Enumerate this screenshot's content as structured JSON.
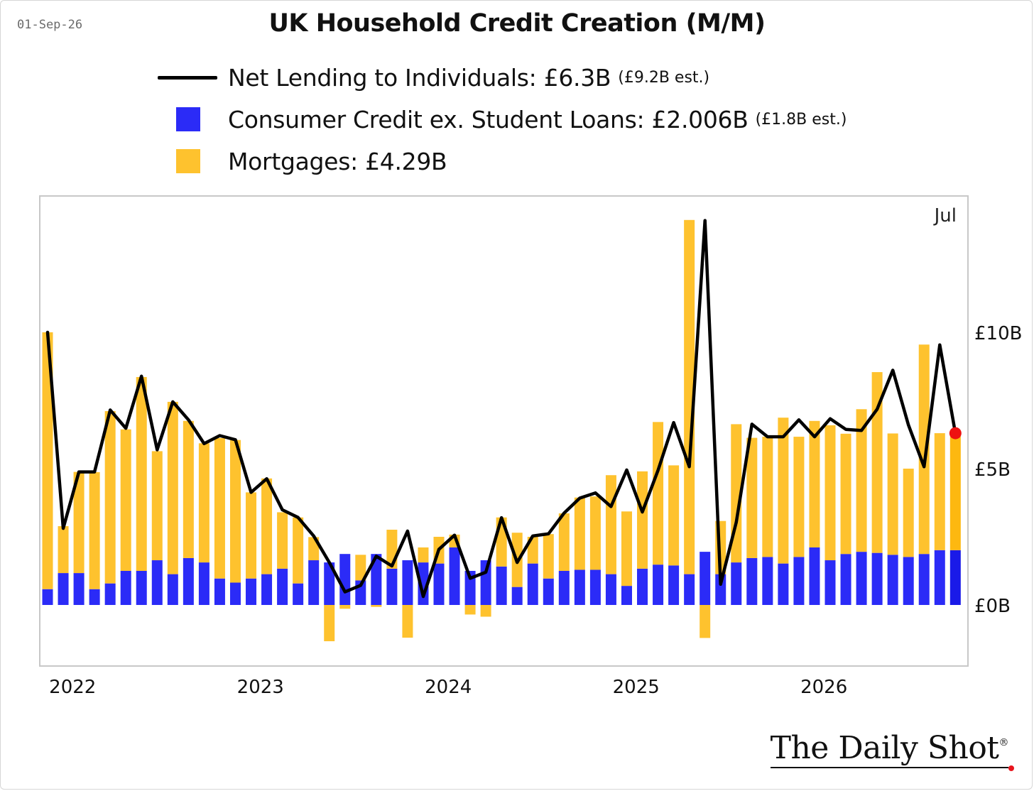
{
  "date": "01-Sep-26",
  "title": "UK Household Credit Creation (M/M)",
  "legend": {
    "line": {
      "label": "Net Lending to Individuals: £6.3B",
      "note": "(£9.2B est.)"
    },
    "consumer": {
      "label": "Consumer Credit ex. Student Loans: £2.006B",
      "note": "(£1.8B est.)"
    },
    "mortgages": {
      "label": "Mortgages: £4.29B",
      "note": ""
    }
  },
  "brand": "The Daily Shot",
  "brand_reg": "®",
  "colors": {
    "consumer": "#2b2bf7",
    "consumer_last": "#1a1ae8",
    "mortgages": "#fec22e",
    "mortgages_last": "#fdb810",
    "line": "#000000",
    "last_point": "#ee1111",
    "border": "#c8c8c8"
  },
  "chart_data": {
    "type": "bar",
    "title": "UK Household Credit Creation (M/M)",
    "y_axis_side": "right",
    "y_ticks": [
      "£0B",
      "£5B",
      "£10B"
    ],
    "y_tick_values": [
      0,
      5,
      10
    ],
    "ylim": [
      -2.2,
      14.8
    ],
    "x_tick_labels": [
      "2022",
      "2023",
      "2024",
      "2025",
      "2026"
    ],
    "x_tick_index": [
      1.6,
      13.6,
      25.6,
      37.6,
      49.6
    ],
    "last_label": "Jul",
    "grid": false,
    "legend_position": "top",
    "months": 59,
    "series": [
      {
        "name": "Consumer Credit ex. Student Loans",
        "kind": "bar",
        "values": [
          0.58,
          1.17,
          1.17,
          0.58,
          0.79,
          1.25,
          1.25,
          1.64,
          1.13,
          1.72,
          1.56,
          0.97,
          0.82,
          0.97,
          1.13,
          1.33,
          0.79,
          1.64,
          1.56,
          1.87,
          0.9,
          1.87,
          1.33,
          1.64,
          1.56,
          1.52,
          2.11,
          1.25,
          1.64,
          1.41,
          0.66,
          1.52,
          0.97,
          1.25,
          1.29,
          1.29,
          1.13,
          0.7,
          1.33,
          1.48,
          1.45,
          1.13,
          1.95,
          1.13,
          1.56,
          1.72,
          1.76,
          1.52,
          1.76,
          2.11,
          1.64,
          1.87,
          1.95,
          1.91,
          1.84,
          1.76,
          1.87,
          2.01,
          2.01
        ]
      },
      {
        "name": "Mortgages",
        "kind": "bar",
        "values": [
          9.42,
          1.72,
          3.71,
          4.29,
          6.32,
          5.19,
          7.11,
          4.0,
          6.32,
          5.03,
          4.37,
          5.15,
          5.23,
          3.16,
          3.51,
          2.07,
          2.42,
          0.85,
          -1.33,
          -0.14,
          0.94,
          -0.07,
          1.43,
          -1.2,
          0.55,
          0.98,
          0.47,
          -0.35,
          -0.43,
          1.8,
          1.99,
          0.98,
          1.63,
          2.11,
          2.65,
          2.69,
          3.63,
          2.73,
          3.57,
          5.23,
          3.67,
          12.99,
          -1.21,
          1.95,
          5.07,
          4.41,
          4.41,
          5.35,
          4.41,
          4.64,
          4.95,
          4.41,
          5.23,
          6.63,
          4.45,
          3.24,
          7.68,
          4.29,
          4.29
        ]
      },
      {
        "name": "Net Lending to Individuals",
        "kind": "line",
        "values": [
          10.0,
          2.81,
          4.88,
          4.88,
          7.15,
          6.48,
          8.39,
          5.69,
          7.45,
          6.79,
          5.92,
          6.21,
          6.06,
          4.13,
          4.63,
          3.49,
          3.21,
          2.53,
          1.56,
          0.48,
          0.72,
          1.79,
          1.43,
          2.71,
          0.31,
          2.04,
          2.56,
          0.98,
          1.2,
          3.2,
          1.56,
          2.53,
          2.61,
          3.37,
          3.92,
          4.11,
          3.61,
          4.95,
          3.41,
          4.94,
          6.69,
          5.07,
          14.1,
          0.76,
          3.04,
          6.63,
          6.17,
          6.17,
          6.79,
          6.17,
          6.83,
          6.44,
          6.4,
          7.18,
          8.61,
          6.6,
          5.07,
          9.54,
          6.3
        ]
      }
    ]
  }
}
